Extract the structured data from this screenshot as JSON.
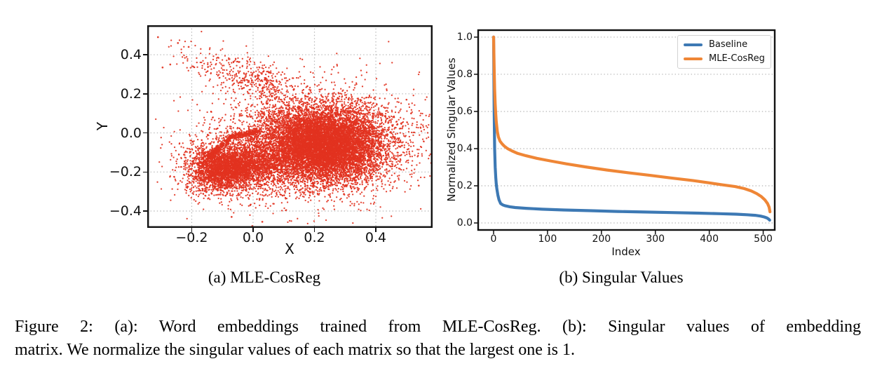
{
  "colors": {
    "scatter_red": "#e2321f",
    "baseline_blue": "#3d79b4",
    "cosreg_orange": "#ef8636",
    "grid_gray": "#b3b3b3",
    "axis_black": "#111111",
    "legend_border": "#d2d2d2"
  },
  "captions": {
    "sub_a": "(a) MLE-CosReg",
    "sub_b": "(b) Singular Values",
    "main_line1": "Figure 2: (a): Word embeddings trained from MLE-CosReg. (b): Singular values of embedding",
    "main_line2": "matrix. We normalize the singular values of each matrix so that the largest one is 1."
  },
  "chart_data": [
    {
      "type": "scatter",
      "title": "",
      "xlabel": "X",
      "ylabel": "Y",
      "xlim": [
        -0.345,
        0.585
      ],
      "ylim": [
        -0.486,
        0.551
      ],
      "xticks": [
        -0.2,
        0.0,
        0.2,
        0.4
      ],
      "yticks": [
        -0.4,
        -0.2,
        0.0,
        0.2,
        0.4
      ],
      "grid": "both-dotted",
      "point_color": "#e2321f",
      "point_radius": 1.15,
      "clusters": [
        {
          "n": 9000,
          "cx": 0.225,
          "cy": -0.06,
          "sx": 0.1,
          "sy": 0.095
        },
        {
          "n": 3000,
          "cx": 0.21,
          "cy": -0.05,
          "sx": 0.155,
          "sy": 0.14
        },
        {
          "n": 2400,
          "cx": -0.095,
          "cy": -0.185,
          "sx": 0.055,
          "sy": 0.055
        },
        {
          "n": 800,
          "cx": -0.07,
          "cy": -0.17,
          "sx": 0.1,
          "sy": 0.09
        },
        {
          "n": 900,
          "cx": 0.0,
          "cy": -0.16,
          "sx": 0.06,
          "sy": 0.055
        }
      ],
      "arc_band": {
        "n": 550,
        "pts": [
          [
            -0.15,
            -0.13
          ],
          [
            -0.07,
            -0.02
          ],
          [
            0.02,
            0.005
          ]
        ],
        "noise": 0.007
      },
      "spray": {
        "n": 430,
        "from": [
          -0.27,
          0.45
        ],
        "to": [
          0.08,
          0.22
        ],
        "noise": [
          0.05,
          0.042
        ],
        "bias": 0.45
      },
      "outliers": [
        [
          -0.31,
          0.49
        ],
        [
          -0.245,
          0.46
        ],
        [
          -0.27,
          0.35
        ],
        [
          -0.295,
          0.335
        ],
        [
          -0.21,
          0.44
        ],
        [
          0.54,
          -0.27
        ],
        [
          0.515,
          0.1
        ],
        [
          0.03,
          -0.455
        ],
        [
          -0.07,
          -0.43
        ],
        [
          0.5,
          0.17
        ]
      ]
    },
    {
      "type": "line",
      "title": "",
      "xlabel": "Index",
      "ylabel": "Normalized Singular Values",
      "xlim": [
        -28.6,
        521.4
      ],
      "ylim": [
        -0.0377,
        1.0375
      ],
      "xticks": [
        0,
        100,
        200,
        300,
        400,
        500
      ],
      "yticks": [
        0.0,
        0.2,
        0.4,
        0.6,
        0.8,
        1.0
      ],
      "grid": "y-dotted",
      "legend_position": "top-right",
      "series": [
        {
          "name": "Baseline",
          "color": "#3d79b4",
          "x": [
            0,
            0.5,
            1,
            2,
            3,
            4,
            5,
            6,
            8,
            10,
            13,
            17,
            22,
            30,
            40,
            60,
            90,
            130,
            180,
            230,
            280,
            330,
            380,
            420,
            450,
            470,
            485,
            495,
            502,
            507,
            510,
            512
          ],
          "y": [
            1.0,
            0.8,
            0.6,
            0.4,
            0.3,
            0.245,
            0.21,
            0.185,
            0.15,
            0.125,
            0.105,
            0.097,
            0.092,
            0.087,
            0.083,
            0.079,
            0.074,
            0.07,
            0.066,
            0.062,
            0.059,
            0.056,
            0.053,
            0.05,
            0.047,
            0.044,
            0.041,
            0.037,
            0.032,
            0.027,
            0.021,
            0.015
          ]
        },
        {
          "name": "MLE-CosReg",
          "color": "#ef8636",
          "x": [
            0,
            0.5,
            1,
            2,
            3,
            4,
            5,
            7,
            9,
            12,
            16,
            20,
            26,
            34,
            45,
            60,
            80,
            105,
            135,
            170,
            210,
            250,
            290,
            330,
            370,
            400,
            425,
            448,
            465,
            478,
            488,
            496,
            503,
            508,
            511,
            512.5
          ],
          "y": [
            1.0,
            0.92,
            0.84,
            0.72,
            0.64,
            0.585,
            0.545,
            0.49,
            0.462,
            0.44,
            0.425,
            0.413,
            0.4,
            0.388,
            0.374,
            0.362,
            0.348,
            0.334,
            0.318,
            0.302,
            0.285,
            0.27,
            0.256,
            0.242,
            0.228,
            0.216,
            0.205,
            0.196,
            0.185,
            0.172,
            0.158,
            0.143,
            0.125,
            0.105,
            0.085,
            0.06
          ]
        }
      ]
    }
  ]
}
